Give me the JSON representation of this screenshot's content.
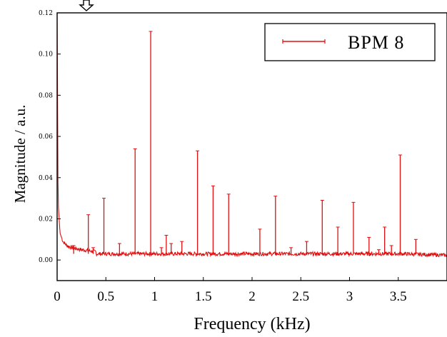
{
  "chart_data": {
    "type": "line",
    "xlabel": "Frequency (kHz)",
    "ylabel": "Magnitude / a.u.",
    "xlim": [
      0,
      4.0
    ],
    "ylim": [
      -0.01,
      0.12
    ],
    "xticks": [
      {
        "value": 0,
        "label": "0"
      },
      {
        "value": 0.5,
        "label": "0.5"
      },
      {
        "value": 1,
        "label": "1"
      },
      {
        "value": 1.5,
        "label": "1.5"
      },
      {
        "value": 2,
        "label": "2"
      },
      {
        "value": 2.5,
        "label": "2.5"
      },
      {
        "value": 3,
        "label": "3"
      },
      {
        "value": 3.5,
        "label": "3.5"
      }
    ],
    "yticks": [
      {
        "value": 0.0,
        "label": "0.00"
      },
      {
        "value": 0.02,
        "label": "0.02"
      },
      {
        "value": 0.04,
        "label": "0.04"
      },
      {
        "value": 0.06,
        "label": "0.06"
      },
      {
        "value": 0.08,
        "label": "0.08"
      },
      {
        "value": 0.1,
        "label": "0.10"
      },
      {
        "value": 0.12,
        "label": "0.12"
      }
    ],
    "legend": {
      "position": "top-right",
      "entries": [
        "BPM 8"
      ]
    },
    "grid": false,
    "series": [
      {
        "name": "BPM 8",
        "color": "#e01010",
        "baseline": 0.003,
        "low_freq_rise": [
          {
            "x": 0.0,
            "y": 0.12
          },
          {
            "x": 0.01,
            "y": 0.028
          },
          {
            "x": 0.03,
            "y": 0.013
          },
          {
            "x": 0.06,
            "y": 0.009
          },
          {
            "x": 0.1,
            "y": 0.007
          },
          {
            "x": 0.15,
            "y": 0.006
          },
          {
            "x": 0.25,
            "y": 0.005
          },
          {
            "x": 0.4,
            "y": 0.004
          }
        ],
        "peaks": [
          {
            "x": 0.17,
            "y": 0.007
          },
          {
            "x": 0.32,
            "y": 0.022
          },
          {
            "x": 0.37,
            "y": 0.006
          },
          {
            "x": 0.48,
            "y": 0.03
          },
          {
            "x": 0.64,
            "y": 0.008
          },
          {
            "x": 0.8,
            "y": 0.054
          },
          {
            "x": 0.96,
            "y": 0.111
          },
          {
            "x": 1.07,
            "y": 0.006
          },
          {
            "x": 1.12,
            "y": 0.012
          },
          {
            "x": 1.17,
            "y": 0.008
          },
          {
            "x": 1.28,
            "y": 0.009
          },
          {
            "x": 1.44,
            "y": 0.053
          },
          {
            "x": 1.6,
            "y": 0.036
          },
          {
            "x": 1.76,
            "y": 0.032
          },
          {
            "x": 2.08,
            "y": 0.015
          },
          {
            "x": 2.24,
            "y": 0.031
          },
          {
            "x": 2.4,
            "y": 0.006
          },
          {
            "x": 2.56,
            "y": 0.009
          },
          {
            "x": 2.72,
            "y": 0.029
          },
          {
            "x": 2.88,
            "y": 0.016
          },
          {
            "x": 3.04,
            "y": 0.028
          },
          {
            "x": 3.2,
            "y": 0.011
          },
          {
            "x": 3.3,
            "y": 0.005
          },
          {
            "x": 3.36,
            "y": 0.016
          },
          {
            "x": 3.43,
            "y": 0.007
          },
          {
            "x": 3.52,
            "y": 0.051
          },
          {
            "x": 3.68,
            "y": 0.01
          }
        ]
      }
    ]
  }
}
